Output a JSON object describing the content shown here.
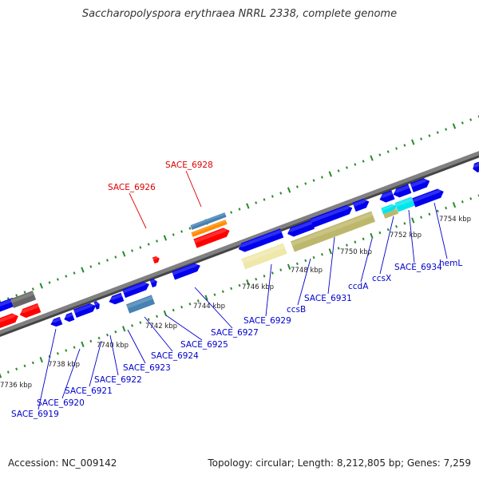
{
  "title": "Saccharopolyspora erythraea NRRL 2338, complete genome",
  "footer": {
    "accession": "Accession: NC_009142",
    "summary": "Topology: circular; Length: 8,212,805 bp; Genes: 7,259"
  },
  "colors": {
    "backbone": "#808080",
    "tick": "#2a8a2a",
    "gene_blue": "#0000ee",
    "gene_red": "#ff0000",
    "gene_gray": "#666666",
    "gene_steel": "#4682b4",
    "gene_orange": "#ff8c00",
    "gene_khaki": "#bdb76b",
    "gene_pale": "#eee8aa",
    "gene_cyan": "#00e5ee",
    "label_blue": "#0000cc",
    "label_red": "#dd0000"
  },
  "scale": {
    "ticks": [
      {
        "label": "7736 kbp"
      },
      {
        "label": "7738 kbp"
      },
      {
        "label": "7740 kbp"
      },
      {
        "label": "7742 kbp"
      },
      {
        "label": "7744 kbp"
      },
      {
        "label": "7746 kbp"
      },
      {
        "label": "7748 kbp"
      },
      {
        "label": "7750 kbp"
      },
      {
        "label": "7752 kbp"
      },
      {
        "label": "7754 kbp"
      }
    ]
  },
  "gene_labels_bottom": [
    {
      "name": "SACE_6919"
    },
    {
      "name": "SACE_6920"
    },
    {
      "name": "SACE_6921"
    },
    {
      "name": "SACE_6922"
    },
    {
      "name": "SACE_6923"
    },
    {
      "name": "SACE_6924"
    },
    {
      "name": "SACE_6925"
    },
    {
      "name": "SACE_6927"
    },
    {
      "name": "SACE_6929"
    },
    {
      "name": "ccsB"
    },
    {
      "name": "SACE_6931"
    },
    {
      "name": "ccdA"
    },
    {
      "name": "ccsX"
    },
    {
      "name": "SACE_6934"
    },
    {
      "name": "hemL"
    }
  ],
  "gene_labels_top": [
    {
      "name": "SACE_6926"
    },
    {
      "name": "SACE_6928"
    }
  ]
}
